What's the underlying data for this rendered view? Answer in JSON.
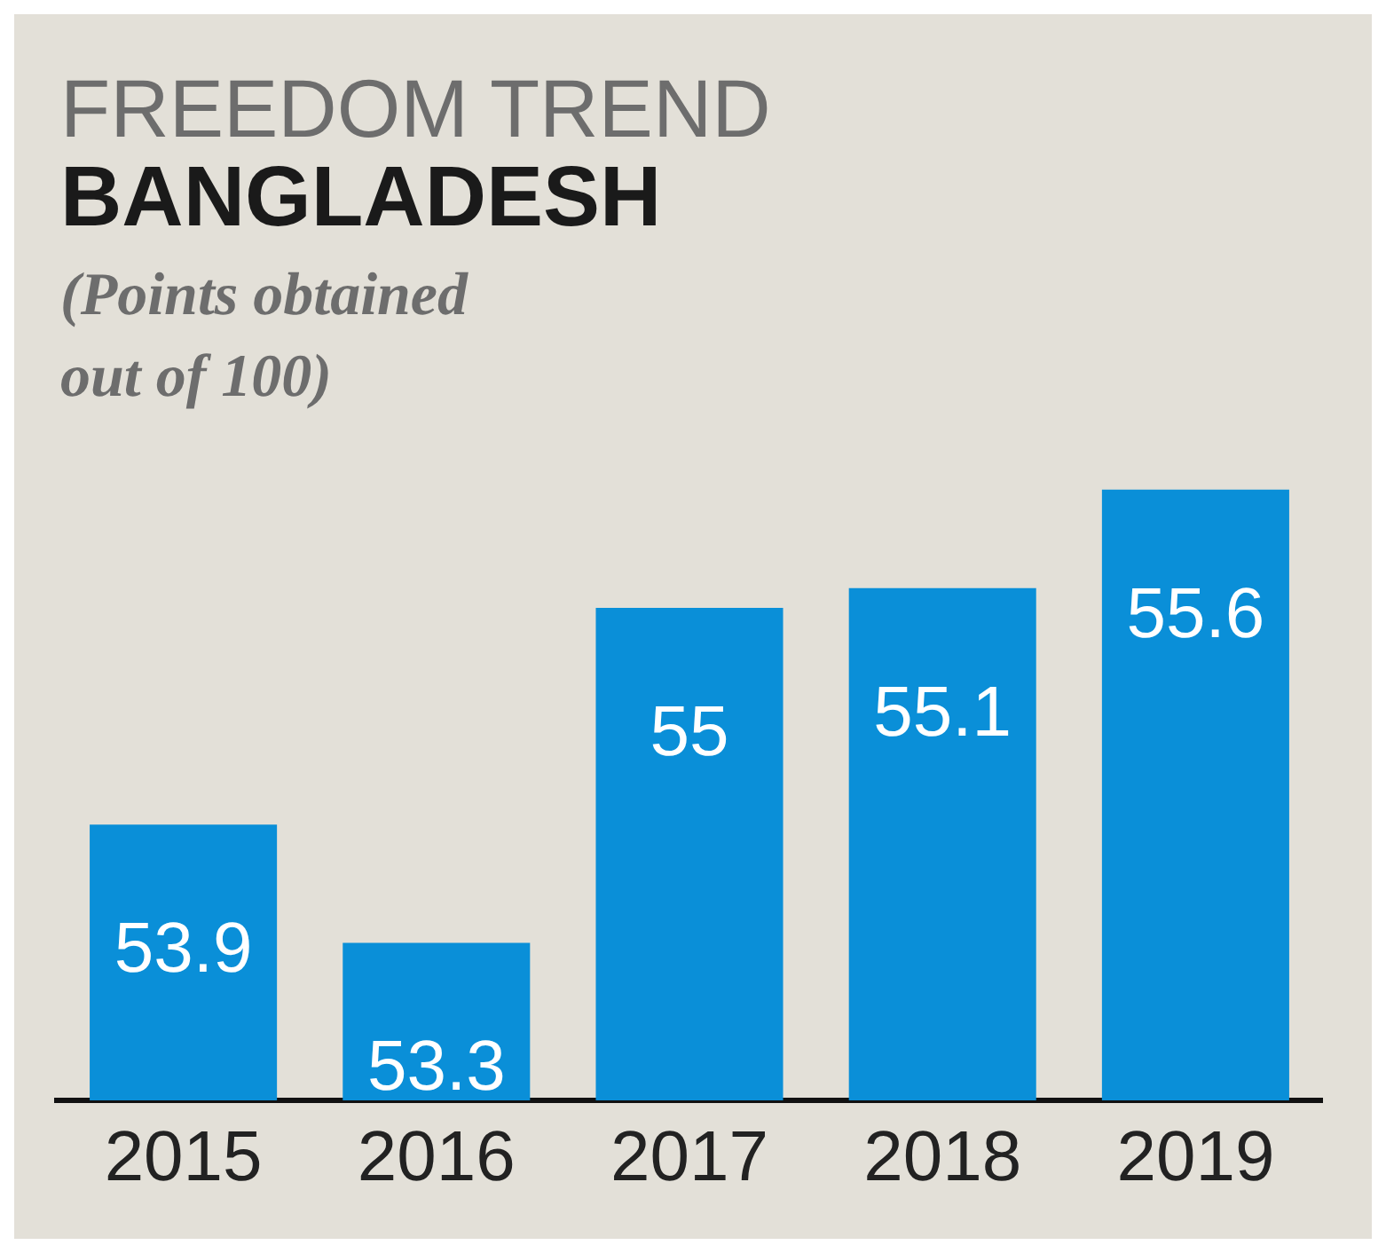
{
  "chart_data": {
    "type": "bar",
    "title": "FREEDOM TREND",
    "subtitle": "BANGLADESH",
    "annotations": [
      "(Points obtained out of 100)"
    ],
    "categories": [
      "2015",
      "2016",
      "2017",
      "2018",
      "2019"
    ],
    "values": [
      53.9,
      53.3,
      55,
      55.1,
      55.6
    ],
    "color": "#0a8fd8",
    "tick_labels": "x",
    "data_labels": true,
    "grid": false,
    "legend": false
  }
}
